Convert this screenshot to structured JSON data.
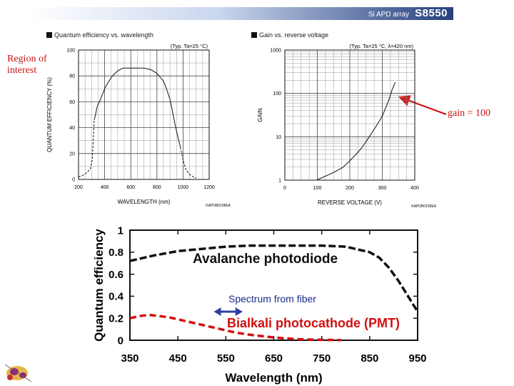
{
  "banner": {
    "product": "Si APD array",
    "model": "S8550"
  },
  "qe_section": {
    "title": "Quantum efficiency vs. wavelength"
  },
  "gain_section": {
    "title": "Gain vs. reverse voltage"
  },
  "annotations": {
    "region_of_interest": "Region of interest",
    "gain_100": "gain = 100"
  },
  "colors": {
    "red": "#d01010",
    "banner_dark": "#27407e"
  },
  "chart_data": [
    {
      "type": "line",
      "note": "(Typ. Ta=25 °C)",
      "xlabel": "WAVELENGTH (nm)",
      "ylabel": "QUANTUM EFFICIENCY (%)",
      "xlim": [
        200,
        1200
      ],
      "ylim": [
        0,
        100
      ],
      "xticks": [
        200,
        400,
        600,
        800,
        1000,
        1200
      ],
      "yticks": [
        0,
        20,
        40,
        60,
        80,
        100
      ],
      "grid": true,
      "code": "KAPDB0108EA",
      "series": [
        {
          "style": "solid",
          "x": [
            320,
            330,
            340,
            350,
            360,
            380,
            400,
            420,
            440,
            460,
            480,
            500,
            520,
            540,
            560,
            580,
            600,
            650,
            700,
            750,
            800,
            850,
            870,
            900,
            920,
            940,
            960,
            980
          ],
          "y": [
            46,
            50,
            55,
            58,
            60,
            65,
            70,
            74,
            77,
            80,
            82,
            84,
            85,
            86,
            86,
            86,
            86,
            86,
            86,
            85,
            82,
            76,
            71,
            62,
            52,
            42,
            33,
            25
          ]
        },
        {
          "style": "dashed",
          "x": [
            200,
            230,
            260,
            290,
            305,
            320
          ],
          "y": [
            2,
            3,
            5,
            8,
            15,
            46
          ]
        },
        {
          "style": "dashed",
          "x": [
            980,
            1000,
            1020,
            1040,
            1060,
            1080,
            1100
          ],
          "y": [
            25,
            15,
            8,
            5,
            3,
            2,
            1
          ]
        }
      ]
    },
    {
      "type": "line",
      "note": "(Typ. Ta=25 °C, λ=420 nm)",
      "xlabel": "REVERSE VOLTAGE (V)",
      "ylabel": "GAIN",
      "xlim": [
        0,
        400
      ],
      "ylim": [
        1,
        1000
      ],
      "yscale": "log",
      "xticks": [
        0,
        100,
        200,
        300,
        400
      ],
      "yticks": [
        1,
        10,
        100,
        1000
      ],
      "grid": true,
      "code": "KAPDB0109EA",
      "series": [
        {
          "style": "solid",
          "x": [
            100,
            150,
            180,
            200,
            220,
            240,
            260,
            280,
            300,
            320,
            330,
            340
          ],
          "y": [
            1.02,
            1.5,
            2,
            2.8,
            4,
            6,
            10,
            17,
            30,
            70,
            120,
            180
          ]
        }
      ]
    },
    {
      "type": "line",
      "xlabel": "Wavelength (nm)",
      "ylabel": "Quantum efficiency",
      "xlim": [
        350,
        950
      ],
      "ylim": [
        0,
        1
      ],
      "xticks": [
        350,
        450,
        550,
        650,
        750,
        850,
        950
      ],
      "yticks": [
        0,
        0.2,
        0.4,
        0.6,
        0.8,
        1
      ],
      "grid": false,
      "labels": {
        "apd": "Avalanche photodiode",
        "spectrum": "Spectrum from fiber",
        "pmt": "Bialkali photocathode (PMT)"
      },
      "spectrum_range": [
        525,
        585
      ],
      "series": [
        {
          "name": "Avalanche photodiode",
          "color": "#111111",
          "x": [
            350,
            370,
            400,
            450,
            500,
            550,
            600,
            650,
            700,
            750,
            800,
            850,
            870,
            890,
            910,
            930,
            950
          ],
          "y": [
            0.72,
            0.74,
            0.77,
            0.81,
            0.83,
            0.85,
            0.86,
            0.86,
            0.86,
            0.86,
            0.85,
            0.8,
            0.75,
            0.66,
            0.54,
            0.4,
            0.26
          ]
        },
        {
          "name": "Bialkali photocathode (PMT)",
          "color": "#d01010",
          "x": [
            350,
            370,
            390,
            410,
            430,
            450,
            470,
            500,
            530,
            550,
            570,
            600,
            630,
            650,
            670,
            700,
            730,
            760,
            790
          ],
          "y": [
            0.2,
            0.22,
            0.23,
            0.22,
            0.21,
            0.19,
            0.17,
            0.14,
            0.11,
            0.09,
            0.07,
            0.05,
            0.035,
            0.025,
            0.018,
            0.01,
            0.006,
            0.003,
            0.001
          ]
        }
      ]
    }
  ]
}
